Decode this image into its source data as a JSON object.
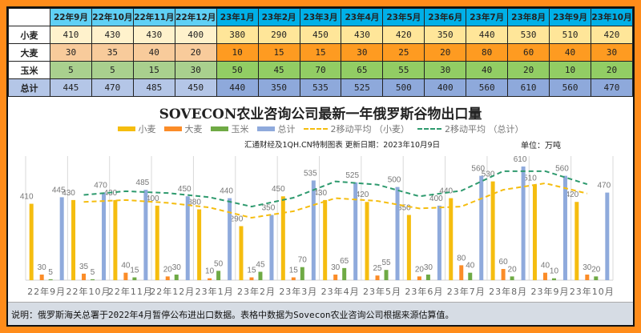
{
  "table": {
    "corner": "",
    "columns": [
      "22年9月",
      "22年10月",
      "22年11月",
      "22年12月",
      "23年1月",
      "23年2月",
      "23年3月",
      "23年4月",
      "23年5月",
      "23年6月",
      "23年7月",
      "23年8月",
      "23年9月",
      "23年10月"
    ],
    "rows": [
      {
        "label": "小麦",
        "values": [
          410,
          430,
          430,
          400,
          380,
          290,
          450,
          430,
          420,
          350,
          440,
          530,
          510,
          420
        ]
      },
      {
        "label": "大麦",
        "values": [
          30,
          35,
          40,
          20,
          10,
          15,
          15,
          30,
          25,
          20,
          80,
          60,
          40,
          30
        ]
      },
      {
        "label": "玉米",
        "values": [
          5,
          5,
          15,
          30,
          50,
          45,
          70,
          65,
          55,
          30,
          40,
          20,
          10,
          20
        ]
      },
      {
        "label": "总计",
        "values": [
          445,
          470,
          485,
          450,
          440,
          350,
          535,
          525,
          500,
          400,
          560,
          610,
          560,
          470
        ]
      }
    ]
  },
  "chart": {
    "title": "SOVECON农业咨询公司最新一年俄罗斯谷物出口量",
    "source": "汇通财经及1QH.CN特制图表 更新日期：2023年10月9日",
    "unit": "单位：万吨",
    "legend": [
      "小麦",
      "大麦",
      "玉米",
      "总计",
      "2移动平均 （小麦）",
      "2移动平均 （总计）"
    ]
  },
  "footer": {
    "note": "说明：俄罗斯海关总署于2022年4月暂停公布进出口数据。表格中数据为Sovecon农业咨询公司根据来源估算值。"
  },
  "colors": {
    "wheat": "#f5bd0f",
    "barley": "#fb8c28",
    "corn": "#6faa45",
    "total": "#8faadc",
    "ma_wheat": "#f5bd0f",
    "ma_total": "#2e9a6e",
    "frame": "#ff8c1a"
  },
  "chart_data": {
    "type": "bar",
    "title": "SOVECON农业咨询公司最新一年俄罗斯谷物出口量",
    "xlabel": "",
    "ylabel": "单位：万吨",
    "categories": [
      "22年9月",
      "22年10月",
      "22年11月",
      "22年12月",
      "23年1月",
      "23年2月",
      "23年3月",
      "23年4月",
      "23年5月",
      "23年6月",
      "23年7月",
      "23年8月",
      "23年9月",
      "23年10月"
    ],
    "series": [
      {
        "name": "小麦",
        "type": "bar",
        "values": [
          410,
          430,
          430,
          400,
          380,
          290,
          450,
          430,
          420,
          350,
          440,
          530,
          510,
          420
        ]
      },
      {
        "name": "大麦",
        "type": "bar",
        "values": [
          30,
          35,
          40,
          20,
          10,
          15,
          15,
          30,
          25,
          20,
          80,
          60,
          40,
          30
        ]
      },
      {
        "name": "玉米",
        "type": "bar",
        "values": [
          5,
          5,
          15,
          30,
          50,
          45,
          70,
          65,
          55,
          30,
          40,
          20,
          10,
          20
        ]
      },
      {
        "name": "总计",
        "type": "bar",
        "values": [
          445,
          470,
          485,
          450,
          440,
          350,
          535,
          525,
          500,
          400,
          560,
          610,
          560,
          470
        ]
      },
      {
        "name": "2移动平均 （小麦）",
        "type": "line",
        "style": "dashed",
        "values": [
          null,
          420,
          430,
          415,
          390,
          335,
          370,
          440,
          425,
          385,
          395,
          485,
          520,
          465
        ]
      },
      {
        "name": "2移动平均 （总计）",
        "type": "line",
        "style": "dashed",
        "values": [
          null,
          457.5,
          477.5,
          467.5,
          445,
          395,
          442.5,
          530,
          512.5,
          450,
          480,
          585,
          585,
          515
        ]
      }
    ],
    "ylim": [
      0,
      650
    ],
    "grid": "vertical category separators",
    "legend_position": "top",
    "annotations": [
      "汇通财经及1QH.CN特制图表 更新日期：2023年10月9日",
      "单位：万吨"
    ]
  }
}
